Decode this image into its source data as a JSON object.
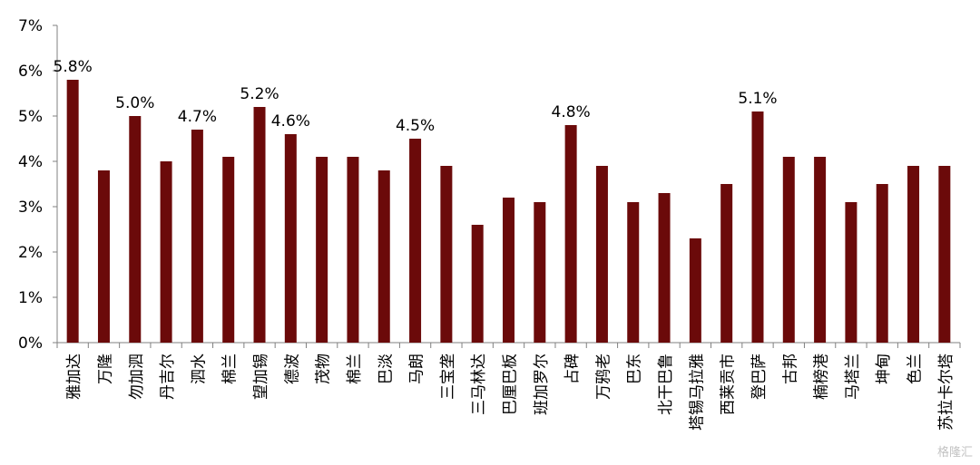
{
  "chart_data": {
    "type": "bar",
    "bar_color": "#6B0A0A",
    "axis_color": "#808080",
    "categories": [
      "雅加达",
      "万隆",
      "勿加泗",
      "丹吉尔",
      "泗水",
      "棉兰",
      "望加锡",
      "德波",
      "茂物",
      "棉兰",
      "巴淡",
      "马朗",
      "三宝垄",
      "三马林达",
      "巴厘巴板",
      "班加罗尔",
      "占碑",
      "万鸦老",
      "巴东",
      "北干巴鲁",
      "塔锡马拉雅",
      "西莱贡市",
      "登巴萨",
      "古邦",
      "楠榜港",
      "马塔兰",
      "坤甸",
      "色兰",
      "苏拉卡尔塔"
    ],
    "values": [
      5.8,
      3.8,
      5.0,
      4.0,
      4.7,
      4.1,
      5.2,
      4.6,
      4.1,
      4.1,
      3.8,
      4.5,
      3.9,
      2.6,
      3.2,
      3.1,
      4.8,
      3.9,
      3.1,
      3.3,
      2.3,
      3.5,
      5.1,
      4.1,
      4.1,
      3.1,
      3.5,
      3.9,
      3.9
    ],
    "data_labels": [
      {
        "index": 0,
        "text": "5.8%"
      },
      {
        "index": 2,
        "text": "5.0%"
      },
      {
        "index": 4,
        "text": "4.7%"
      },
      {
        "index": 6,
        "text": "5.2%"
      },
      {
        "index": 7,
        "text": "4.6%"
      },
      {
        "index": 11,
        "text": "4.5%"
      },
      {
        "index": 16,
        "text": "4.8%"
      },
      {
        "index": 22,
        "text": "5.1%"
      }
    ],
    "yticks": [
      "0%",
      "1%",
      "2%",
      "3%",
      "4%",
      "5%",
      "6%",
      "7%"
    ],
    "ylim": [
      0,
      7
    ],
    "grid": false,
    "legend": "none"
  },
  "watermark": "格隆汇"
}
